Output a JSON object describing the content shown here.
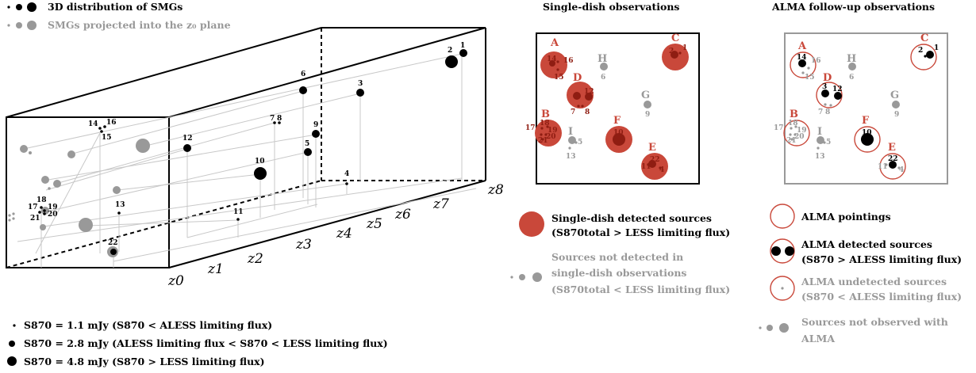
{
  "legend_top": {
    "black": "3D distribution of SMGs",
    "grey": "SMGs projected into the z₀ plane"
  },
  "z_labels": [
    "z0",
    "z1",
    "z2",
    "z3",
    "z4",
    "z5",
    "z6",
    "z7",
    "z8"
  ],
  "single_dish": {
    "title": "Single-dish observations",
    "legend_detected": "Single-dish detected sources",
    "legend_detected_sub": "(S870total > LESS limiting flux)",
    "legend_undetected_1": "Sources not detected in",
    "legend_undetected_2": "single-dish observations",
    "legend_undetected_3": "(S870total < LESS limiting flux)"
  },
  "alma": {
    "title": "ALMA follow-up observations",
    "legend_pointings": "ALMA pointings",
    "legend_detected_1": "ALMA detected sources",
    "legend_detected_2": "(S870 > ALESS limiting flux)",
    "legend_undetected_1": "ALMA undetected sources",
    "legend_undetected_2": "(S870 < ALESS limiting flux)",
    "legend_notobs_1": "Sources not observed with",
    "legend_notobs_2": "ALMA"
  },
  "flux_legend": [
    "S870 = 1.1 mJy (S870 < ALESS limiting flux)",
    "S870 = 2.8 mJy (ALESS limiting flux < S870 < LESS limiting flux)",
    "S870 = 4.8 mJy (S870 > LESS limiting flux)"
  ],
  "colors": {
    "red": "#c9483a",
    "red_dark": "#8f1d12",
    "grey": "#999999",
    "black": "#000000"
  }
}
